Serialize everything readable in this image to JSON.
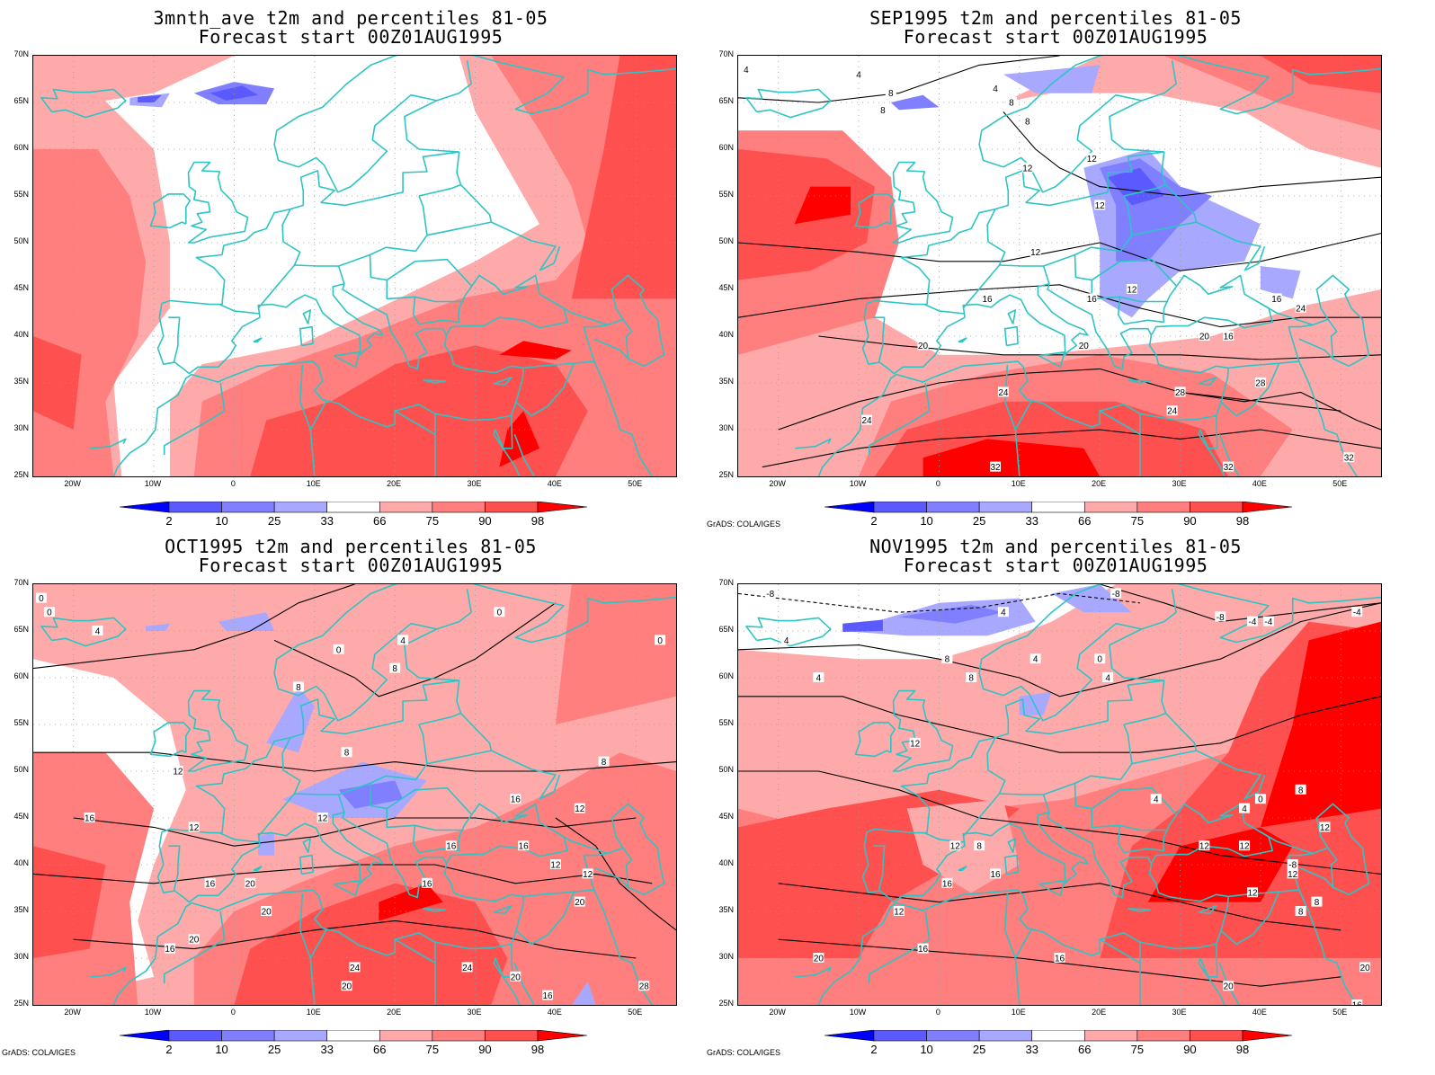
{
  "colors": {
    "coast": "#2ec4c4",
    "c2": "#0000ff",
    "c10": "#5a5aff",
    "c25": "#7f7fff",
    "c33": "#a8a8ff",
    "c66": "#ffaaaa",
    "c75": "#ff7e7e",
    "c90": "#ff5050",
    "c98": "#ff0000",
    "contour": "#000000"
  },
  "axes": {
    "lat_labels": [
      "70N",
      "65N",
      "60N",
      "55N",
      "50N",
      "45N",
      "40N",
      "35N",
      "30N",
      "25N"
    ],
    "lon_labels": [
      "20W",
      "10W",
      "0",
      "10E",
      "20E",
      "30E",
      "40E",
      "50E"
    ]
  },
  "colorbar": {
    "labels": [
      "2",
      "10",
      "25",
      "33",
      "66",
      "75",
      "90",
      "98"
    ]
  },
  "credit": "GrADS: COLA/IGES",
  "panels": [
    {
      "title_line1": "3mnth_ave t2m and percentiles 81-05",
      "title_line2": "Forecast start 00Z01AUG1995",
      "show_credit": false,
      "contour_labels": []
    },
    {
      "title_line1": "SEP1995 t2m and percentiles 81-05",
      "title_line2": "Forecast start 00Z01AUG1995",
      "show_credit": true,
      "contour_labels": [
        "4",
        "4",
        "8",
        "8",
        "4",
        "8",
        "8",
        "12",
        "12",
        "12",
        "12",
        "12",
        "16",
        "16",
        "16",
        "16",
        "20",
        "20",
        "24",
        "24",
        "24",
        "28",
        "28",
        "32",
        "32",
        "32",
        "20",
        "24"
      ]
    },
    {
      "title_line1": "OCT1995 t2m and percentiles 81-05",
      "title_line2": "Forecast start 00Z01AUG1995",
      "show_credit": true,
      "contour_labels": [
        "0",
        "0",
        "4",
        "8",
        "0",
        "4",
        "8",
        "0",
        "0",
        "12",
        "8",
        "8",
        "16",
        "12",
        "12",
        "12",
        "16",
        "16",
        "16",
        "12",
        "12",
        "16",
        "20",
        "16",
        "20",
        "20",
        "20",
        "24",
        "24",
        "28",
        "20",
        "16",
        "20",
        "16"
      ]
    },
    {
      "title_line1": "NOV1995 t2m and percentiles 81-05",
      "title_line2": "Forecast start 00Z01AUG1995",
      "show_credit": true,
      "contour_labels": [
        "-8",
        "4",
        "-8",
        "-8",
        "4",
        "4",
        "4",
        "8",
        "8",
        "-4",
        "-4",
        "-4",
        "0",
        "4",
        "12",
        "4",
        "8",
        "4",
        "12",
        "8",
        "16",
        "12",
        "12",
        "12",
        "8",
        "12",
        "16",
        "20",
        "16",
        "20",
        "20",
        "16",
        "12",
        "8",
        "-8",
        "0",
        "12",
        "16"
      ]
    }
  ]
}
